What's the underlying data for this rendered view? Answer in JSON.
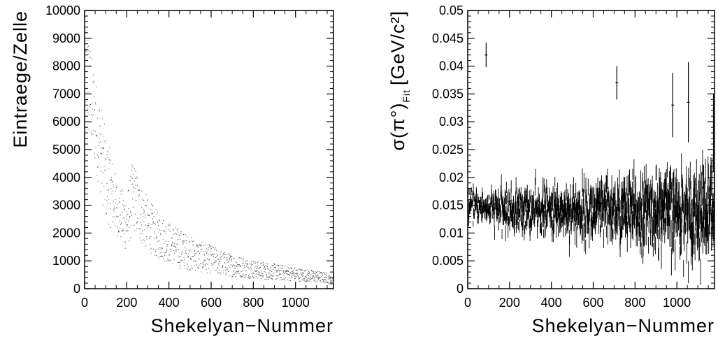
{
  "chart_data": [
    {
      "type": "scatter",
      "xlabel": "Shekelyan−Nummer",
      "ylabel": "Eintraege/Zelle",
      "xlim": [
        0,
        1180
      ],
      "ylim": [
        0,
        10000
      ],
      "xticks": [
        "0",
        "200",
        "400",
        "600",
        "800",
        "1000"
      ],
      "xtick_values": [
        0,
        200,
        400,
        600,
        800,
        1000
      ],
      "yticks": [
        "0",
        "1000",
        "2000",
        "3000",
        "4000",
        "5000",
        "6000",
        "7000",
        "8000",
        "9000",
        "10000"
      ],
      "ytick_values": [
        0,
        1000,
        2000,
        3000,
        4000,
        5000,
        6000,
        7000,
        8000,
        9000,
        10000
      ],
      "grid": false,
      "marker": "dot",
      "color": "#555555",
      "band_trend": {
        "x": [
          0,
          20,
          40,
          60,
          80,
          100,
          130,
          160,
          200,
          230,
          260,
          300,
          350,
          400,
          450,
          500,
          550,
          600,
          650,
          700,
          750,
          800,
          850,
          900,
          950,
          1000,
          1050,
          1100,
          1150,
          1180
        ],
        "y": [
          8600,
          7600,
          6800,
          6100,
          5300,
          4500,
          3800,
          3100,
          2600,
          3600,
          3000,
          2500,
          2100,
          1850,
          1650,
          1450,
          1300,
          1200,
          1050,
          950,
          880,
          800,
          740,
          690,
          640,
          590,
          540,
          500,
          440,
          260
        ],
        "spread_low": [
          0.75,
          0.7,
          0.7,
          0.65,
          0.6,
          0.55,
          0.55,
          0.6,
          0.5,
          0.6,
          0.55,
          0.55,
          0.5,
          0.5,
          0.45,
          0.45,
          0.45,
          0.45,
          0.45,
          0.45,
          0.45,
          0.45,
          0.45,
          0.45,
          0.45,
          0.45,
          0.45,
          0.45,
          0.45,
          0.45
        ],
        "spread_high": [
          1.15,
          1.2,
          1.2,
          1.2,
          1.25,
          1.25,
          1.25,
          1.2,
          1.3,
          1.3,
          1.3,
          1.3,
          1.3,
          1.3,
          1.3,
          1.3,
          1.3,
          1.3,
          1.3,
          1.3,
          1.3,
          1.3,
          1.3,
          1.3,
          1.3,
          1.3,
          1.3,
          1.3,
          1.3,
          1.3
        ]
      },
      "n_points": 1180
    },
    {
      "type": "scatter",
      "subtype": "errorbar",
      "xlabel": "Shekelyan−Nummer",
      "ylabel": "σ(π°)",
      "ylabel_sub": "Fit",
      "ylabel_unit": "[GeV/c²]",
      "xlim": [
        0,
        1180
      ],
      "ylim": [
        0,
        0.05
      ],
      "xticks": [
        "0",
        "200",
        "400",
        "600",
        "800",
        "1000"
      ],
      "xtick_values": [
        0,
        200,
        400,
        600,
        800,
        1000
      ],
      "yticks": [
        "0",
        "0.005",
        "0.01",
        "0.015",
        "0.02",
        "0.025",
        "0.03",
        "0.035",
        "0.04",
        "0.045",
        "0.05"
      ],
      "ytick_values": [
        0,
        0.005,
        0.01,
        0.015,
        0.02,
        0.025,
        0.03,
        0.035,
        0.04,
        0.045,
        0.05
      ],
      "grid": false,
      "color": "#000000",
      "mean_trend": {
        "x": [
          0,
          100,
          200,
          400,
          600,
          800,
          1000,
          1180
        ],
        "y": [
          0.015,
          0.0145,
          0.014,
          0.014,
          0.0138,
          0.0138,
          0.0138,
          0.0138
        ]
      },
      "noise_trend": {
        "x": [
          0,
          100,
          200,
          400,
          600,
          800,
          1000,
          1180
        ],
        "y": [
          0.0012,
          0.0014,
          0.0018,
          0.002,
          0.0025,
          0.003,
          0.0035,
          0.004
        ]
      },
      "outliers": [
        {
          "x": 88,
          "y": 0.042,
          "err": 0.0022
        },
        {
          "x": 713,
          "y": 0.037,
          "err": 0.003
        },
        {
          "x": 980,
          "y": 0.033,
          "err": 0.0058
        },
        {
          "x": 1055,
          "y": 0.0335,
          "err": 0.0072
        },
        {
          "x": 1175,
          "y": 0.028,
          "err": 0.007
        }
      ],
      "n_points": 1180
    }
  ]
}
